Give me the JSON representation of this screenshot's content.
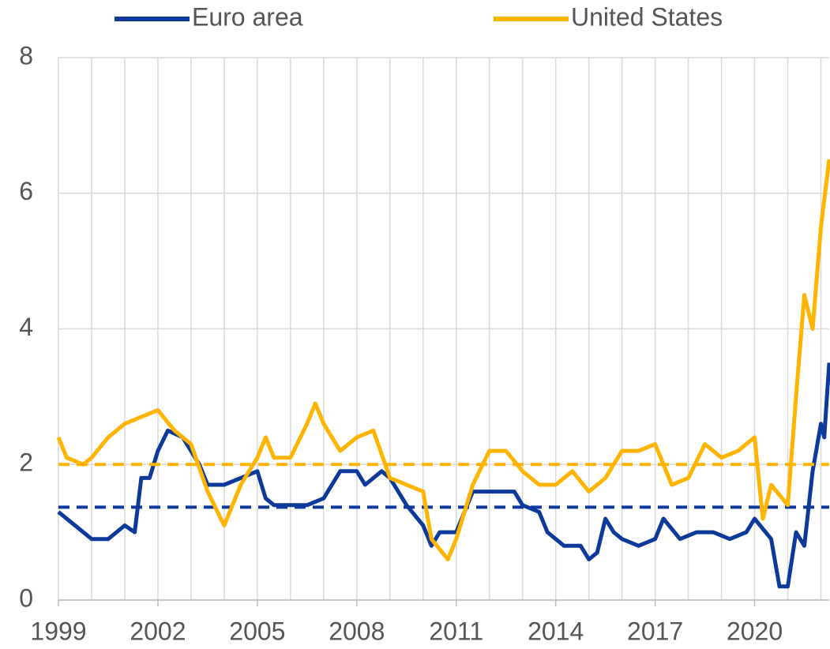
{
  "chart_data": {
    "type": "line",
    "xlim": [
      1999,
      2022.25
    ],
    "xticks": [
      1999,
      2002,
      2005,
      2008,
      2011,
      2014,
      2017,
      2020
    ],
    "xgrid": [
      1999,
      2000,
      2001,
      2002,
      2003,
      2004,
      2005,
      2006,
      2007,
      2008,
      2009,
      2010,
      2011,
      2012,
      2013,
      2014,
      2015,
      2016,
      2017,
      2018,
      2019,
      2020,
      2021,
      2022
    ],
    "ylim": [
      0,
      8
    ],
    "yticks": [
      0,
      2,
      4,
      6,
      8
    ],
    "grid": true,
    "legend": "top",
    "series": [
      {
        "name": "Euro area",
        "color": "#0d3a9a",
        "reference": 1.37,
        "x": [
          1999,
          1999.5,
          2000,
          2000.5,
          2001,
          2001.3,
          2001.5,
          2001.75,
          2002,
          2002.3,
          2002.75,
          2003.25,
          2003.5,
          2004,
          2004.5,
          2005,
          2005.25,
          2005.5,
          2006,
          2006.5,
          2007,
          2007.5,
          2008,
          2008.25,
          2008.75,
          2009,
          2009.5,
          2010,
          2010.25,
          2010.5,
          2011,
          2011.5,
          2012,
          2012.75,
          2013,
          2013.5,
          2013.75,
          2014.25,
          2014.75,
          2015,
          2015.25,
          2015.5,
          2015.75,
          2016,
          2016.5,
          2017,
          2017.25,
          2017.75,
          2018.25,
          2018.75,
          2019.25,
          2019.75,
          2020,
          2020.5,
          2020.75,
          2021,
          2021.25,
          2021.5,
          2021.75,
          2022,
          2022.1,
          2022.25
        ],
        "values": [
          1.3,
          1.1,
          0.9,
          0.9,
          1.1,
          1.0,
          1.8,
          1.8,
          2.2,
          2.5,
          2.4,
          2.0,
          1.7,
          1.7,
          1.8,
          1.9,
          1.5,
          1.4,
          1.4,
          1.4,
          1.5,
          1.9,
          1.9,
          1.7,
          1.9,
          1.8,
          1.4,
          1.1,
          0.8,
          1.0,
          1.0,
          1.6,
          1.6,
          1.6,
          1.4,
          1.3,
          1.0,
          0.8,
          0.8,
          0.6,
          0.7,
          1.2,
          1.0,
          0.9,
          0.8,
          0.9,
          1.2,
          0.9,
          1.0,
          1.0,
          0.9,
          1.0,
          1.2,
          0.9,
          0.2,
          0.2,
          1.0,
          0.8,
          1.9,
          2.6,
          2.4,
          3.5
        ]
      },
      {
        "name": "United States",
        "color": "#ffb400",
        "reference": 2.0,
        "x": [
          1999,
          1999.25,
          1999.75,
          2000,
          2000.5,
          2001,
          2001.5,
          2002,
          2002.5,
          2003,
          2003.5,
          2004,
          2004.5,
          2005,
          2005.25,
          2005.5,
          2006,
          2006.5,
          2006.75,
          2007,
          2007.5,
          2008,
          2008.5,
          2009,
          2009.5,
          2010,
          2010.25,
          2010.75,
          2011,
          2011.5,
          2012,
          2012.5,
          2013,
          2013.5,
          2014,
          2014.5,
          2015,
          2015.5,
          2016,
          2016.5,
          2017,
          2017.5,
          2018,
          2018.5,
          2019,
          2019.5,
          2020,
          2020.25,
          2020.5,
          2021,
          2021.25,
          2021.5,
          2021.75,
          2022,
          2022.25
        ],
        "values": [
          2.4,
          2.1,
          2.0,
          2.1,
          2.4,
          2.6,
          2.7,
          2.8,
          2.5,
          2.3,
          1.6,
          1.1,
          1.7,
          2.1,
          2.4,
          2.1,
          2.1,
          2.6,
          2.9,
          2.6,
          2.2,
          2.4,
          2.5,
          1.8,
          1.7,
          1.6,
          0.9,
          0.6,
          0.9,
          1.7,
          2.2,
          2.2,
          1.9,
          1.7,
          1.7,
          1.9,
          1.6,
          1.8,
          2.2,
          2.2,
          2.3,
          1.7,
          1.8,
          2.3,
          2.1,
          2.2,
          2.4,
          1.2,
          1.7,
          1.4,
          3.0,
          4.5,
          4.0,
          5.5,
          6.5
        ]
      }
    ]
  }
}
